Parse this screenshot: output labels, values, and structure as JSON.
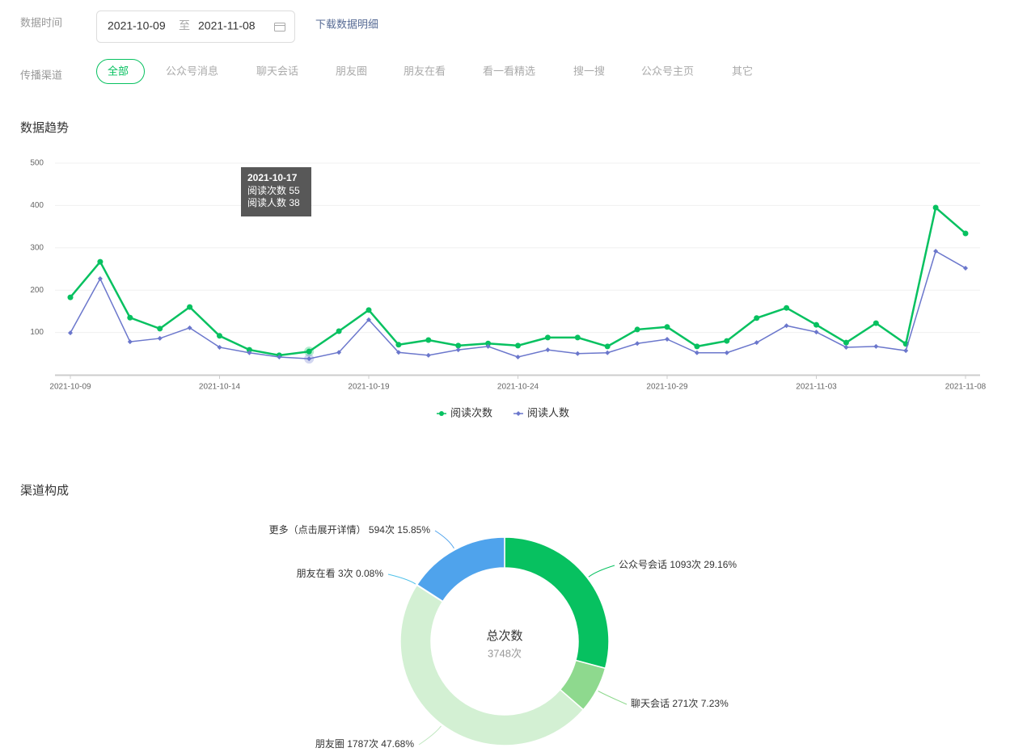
{
  "filters": {
    "date_label": "数据时间",
    "start_date": "2021-10-09",
    "date_separator": "至",
    "end_date": "2021-11-08",
    "download": "下载数据明细",
    "channel_label": "传播渠道",
    "channels": [
      "全部",
      "公众号消息",
      "聊天会话",
      "朋友圈",
      "朋友在看",
      "看一看精选",
      "搜一搜",
      "公众号主页",
      "其它"
    ]
  },
  "sections": {
    "trend_title": "数据趋势",
    "channel_title": "渠道构成"
  },
  "chart_data": [
    {
      "type": "line",
      "categories": [
        "2021-10-09",
        null,
        null,
        null,
        null,
        "2021-10-14",
        null,
        null,
        null,
        null,
        "2021-10-19",
        null,
        null,
        null,
        null,
        "2021-10-24",
        null,
        null,
        null,
        null,
        "2021-10-29",
        null,
        null,
        null,
        null,
        "2021-11-03",
        null,
        null,
        null,
        null,
        "2021-11-08"
      ],
      "series": [
        {
          "name": "阅读次数",
          "color": "#07c160",
          "values": [
            183,
            267,
            135,
            109,
            160,
            92,
            59,
            46,
            55,
            103,
            153,
            71,
            82,
            69,
            74,
            69,
            88,
            88,
            67,
            107,
            113,
            67,
            80,
            134,
            158,
            118,
            76,
            122,
            73,
            395,
            334
          ]
        },
        {
          "name": "阅读人数",
          "color": "#6b77cc",
          "values": [
            99,
            227,
            78,
            86,
            111,
            65,
            52,
            42,
            38,
            53,
            130,
            53,
            46,
            59,
            67,
            42,
            59,
            50,
            52,
            74,
            84,
            52,
            52,
            76,
            116,
            101,
            65,
            67,
            57,
            292,
            252
          ]
        }
      ],
      "ylim": [
        0,
        500
      ],
      "yticks": [
        100,
        200,
        300,
        400,
        500
      ],
      "grid": true,
      "legend": "bottom",
      "tooltip": {
        "title": "2021-10-17"
      }
    },
    {
      "type": "pie",
      "categories": [
        "公众号会话",
        "聊天会话",
        "朋友圈",
        "朋友在看",
        "更多（点击展开详情）"
      ],
      "values": [
        1093,
        271,
        1787,
        3,
        594
      ],
      "value_labels": [
        "1093次",
        "271次",
        "1787次",
        "3次",
        "594次"
      ],
      "percents": [
        29.16,
        7.23,
        47.68,
        0.08,
        15.85
      ],
      "percent_labels": [
        "29.16%",
        "7.23%",
        "47.68%",
        "0.08%",
        "15.85%"
      ],
      "colors": [
        "#07c160",
        "#8ed98e",
        "#d3f0d3",
        "#4fc1e9",
        "#4fa3ec"
      ],
      "center_title": "总次数",
      "total": 3748,
      "total_label": "3748次"
    }
  ]
}
